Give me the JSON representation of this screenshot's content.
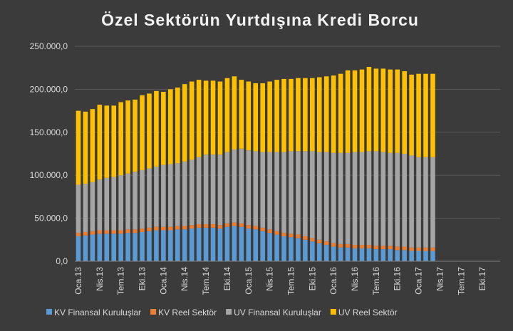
{
  "chart_data": {
    "type": "bar",
    "stacked": true,
    "title": "Özel Sektörün Yurtdışına Kredi Borcu",
    "categories": [
      "Oca.13",
      null,
      null,
      "Nis.13",
      null,
      null,
      "Tem.13",
      null,
      null,
      "Eki.13",
      null,
      null,
      "Oca.14",
      null,
      null,
      "Nis.14",
      null,
      null,
      "Tem.14",
      null,
      null,
      "Eki.14",
      null,
      null,
      "Oca.15",
      null,
      null,
      "Nis.15",
      null,
      null,
      "Tem.15",
      null,
      null,
      "Eki.15",
      null,
      null,
      "Oca.16",
      null,
      null,
      "Nis.16",
      null,
      null,
      "Tem.16",
      null,
      null,
      "Eki.16",
      null,
      null,
      "Oca.17",
      null,
      null,
      "Nis.17",
      null,
      null,
      "Tem.17",
      null,
      null,
      "Eki.17",
      null,
      null
    ],
    "series": [
      {
        "name": "KV Finansal Kuruluşlar",
        "color": "#5b9bd5",
        "values": [
          29000,
          30000,
          31000,
          32000,
          32000,
          32000,
          32000,
          33000,
          33000,
          34000,
          35000,
          36000,
          36000,
          36000,
          37000,
          37000,
          38000,
          39000,
          39000,
          39000,
          38000,
          40000,
          41000,
          40000,
          38000,
          37000,
          35000,
          33000,
          31000,
          29000,
          28000,
          27000,
          25000,
          23000,
          21000,
          19000,
          17000,
          16000,
          16000,
          15000,
          15000,
          15000,
          14000,
          14000,
          14000,
          13000,
          13000,
          12000,
          12000,
          12000,
          12000,
          null,
          null,
          null,
          null,
          null,
          null,
          null,
          null,
          null
        ]
      },
      {
        "name": "KV Reel Sektör",
        "color": "#ed7d31",
        "values": [
          4000,
          4000,
          4000,
          4000,
          4000,
          4000,
          4000,
          4000,
          4000,
          4000,
          4000,
          4000,
          4000,
          4000,
          4000,
          4000,
          4000,
          4000,
          4000,
          4000,
          4000,
          4000,
          4000,
          4000,
          4000,
          4000,
          4000,
          4000,
          4000,
          4000,
          4000,
          4000,
          4000,
          4000,
          4000,
          4000,
          4000,
          4000,
          4000,
          4000,
          4000,
          4000,
          4000,
          4000,
          4000,
          4000,
          4000,
          4000,
          4000,
          4000,
          4000,
          null,
          null,
          null,
          null,
          null,
          null,
          null,
          null,
          null
        ]
      },
      {
        "name": "UV Finansal Kuruluşlar",
        "color": "#a5a5a5",
        "values": [
          56000,
          56000,
          57000,
          59000,
          61000,
          62000,
          64000,
          65000,
          67000,
          68000,
          69000,
          70000,
          72000,
          73000,
          73000,
          75000,
          76000,
          78000,
          81000,
          81000,
          82000,
          83000,
          85000,
          87000,
          87000,
          87000,
          88000,
          90000,
          92000,
          94000,
          96000,
          97000,
          99000,
          101000,
          102000,
          104000,
          105000,
          106000,
          106000,
          108000,
          108000,
          109000,
          110000,
          109000,
          108000,
          109000,
          108000,
          107000,
          105000,
          105000,
          105000,
          null,
          null,
          null,
          null,
          null,
          null,
          null,
          null,
          null
        ]
      },
      {
        "name": "UV Reel Sektör",
        "color": "#ffc000",
        "values": [
          86000,
          84000,
          85000,
          87000,
          84000,
          83000,
          85000,
          85000,
          84000,
          87000,
          87000,
          88000,
          85000,
          87000,
          88000,
          90000,
          91000,
          90000,
          86000,
          86000,
          85000,
          86000,
          85000,
          80000,
          80000,
          79000,
          80000,
          82000,
          84000,
          85000,
          84000,
          85000,
          85000,
          85000,
          87000,
          88000,
          90000,
          92000,
          96000,
          95000,
          96000,
          98000,
          96000,
          97000,
          97000,
          97000,
          96000,
          94000,
          97000,
          97000,
          97000,
          null,
          null,
          null,
          null,
          null,
          null,
          null,
          null,
          null
        ]
      }
    ],
    "ylim": [
      0,
      250000
    ],
    "yticks": [
      {
        "value": 0,
        "label": "0,0"
      },
      {
        "value": 50000,
        "label": "50.000,0"
      },
      {
        "value": 100000,
        "label": "100.000,0"
      },
      {
        "value": 150000,
        "label": "150.000,0"
      },
      {
        "value": 200000,
        "label": "200.000,0"
      },
      {
        "value": 250000,
        "label": "250.000,0"
      }
    ],
    "grid": true,
    "legend": "bottom"
  }
}
